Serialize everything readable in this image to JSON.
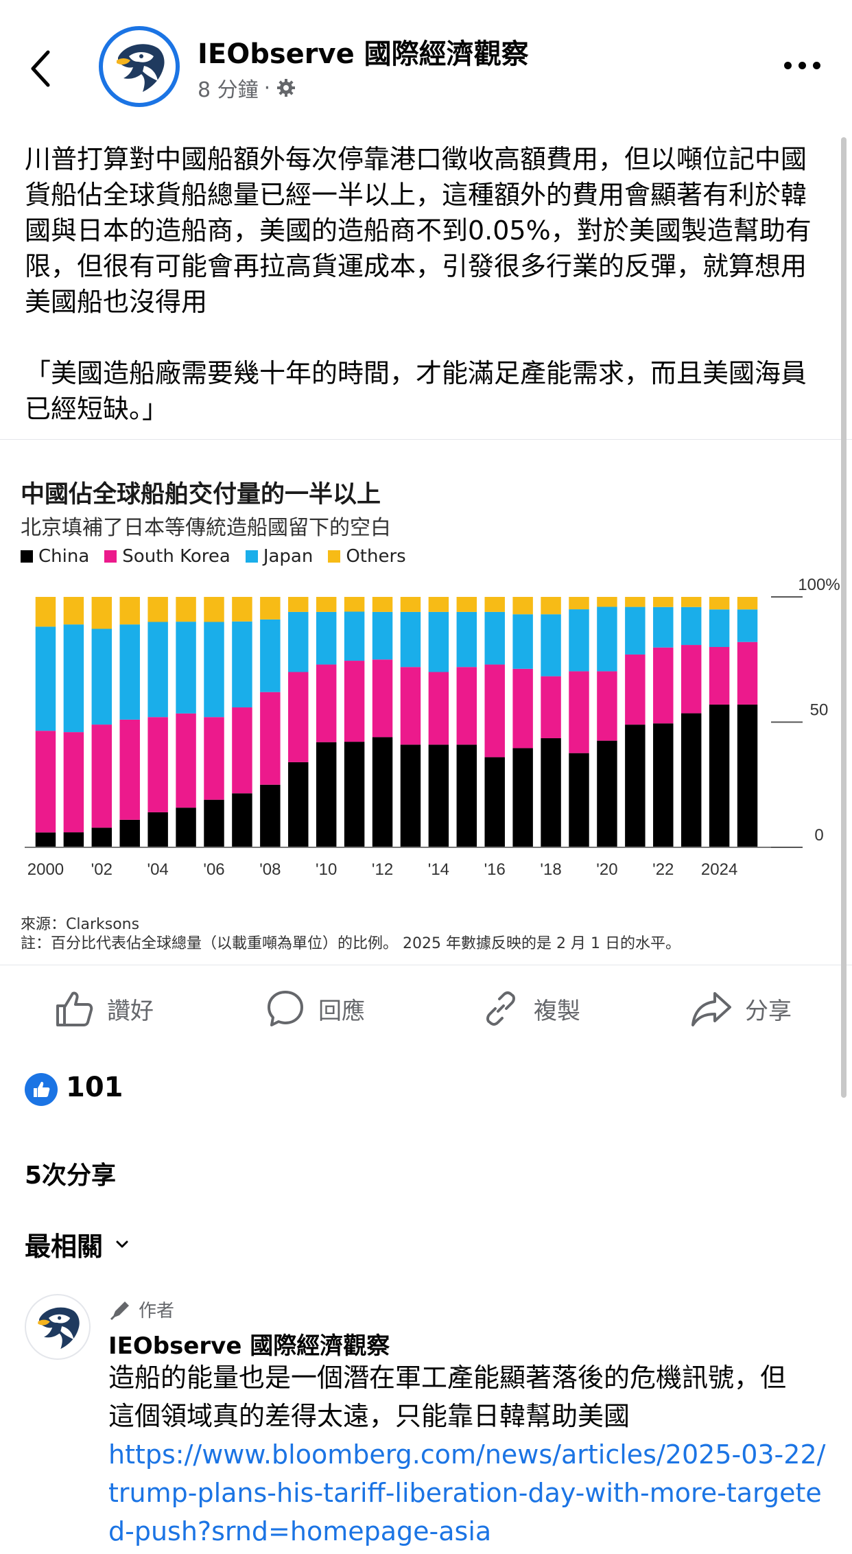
{
  "header": {
    "page_name": "IEObserve 國際經濟觀察",
    "time": "8 分鐘",
    "separator": "·"
  },
  "post": {
    "paragraphs": [
      "川普打算對中國船額外每次停靠港口徵收高額費用，但以噸位記中國貨船佔全球貨船總量已經一半以上，這種額外的費用會顯著有利於韓國與日本的造船商，美國的造船商不到0.05%，對於美國製造幫助有限，但很有可能會再拉高貨運成本，引發很多行業的反彈，就算想用美國船也沒得用",
      "「美國造船廠需要幾十年的時間，才能滿足產能需求，而且美國海員已經短缺。」"
    ]
  },
  "chart_data": {
    "type": "bar",
    "stacked": true,
    "title": "中國佔全球船舶交付量的一半以上",
    "subtitle": "北京填補了日本等傳統造船國留下的空白",
    "x": [
      2000,
      2001,
      2002,
      2003,
      2004,
      2005,
      2006,
      2007,
      2008,
      2009,
      2010,
      2011,
      2012,
      2013,
      2014,
      2015,
      2016,
      2017,
      2018,
      2019,
      2020,
      2021,
      2022,
      2023,
      2024,
      2025
    ],
    "x_tick_labels": [
      "2000",
      "'02",
      "'04",
      "'06",
      "'08",
      "'10",
      "'12",
      "'14",
      "'16",
      "'18",
      "'20",
      "'22",
      "2024"
    ],
    "y_tick_labels": [
      "100%",
      "50",
      "0"
    ],
    "ylim": [
      0,
      100
    ],
    "series": [
      {
        "name": "China",
        "color": "#000000",
        "values": [
          6,
          6,
          8,
          11,
          14,
          16,
          19,
          22,
          25,
          34,
          42,
          43,
          44,
          41,
          41,
          41,
          36,
          40,
          44,
          38,
          43,
          49,
          49,
          53,
          57,
          57
        ]
      },
      {
        "name": "South Korea",
        "color": "#ec1a8c",
        "values": [
          41,
          40,
          42,
          40,
          38,
          38,
          33,
          35,
          37,
          36,
          31,
          33,
          31,
          31,
          29,
          31,
          37,
          32,
          25,
          33,
          28,
          28,
          30,
          27,
          23,
          25
        ]
      },
      {
        "name": "Japan",
        "color": "#1aaeea",
        "values": [
          42,
          43,
          39,
          38,
          38,
          37,
          38,
          35,
          29,
          24,
          21,
          20,
          19,
          22,
          24,
          22,
          21,
          22,
          25,
          25,
          26,
          19,
          16,
          15,
          15,
          13
        ]
      },
      {
        "name": "Others",
        "color": "#f7bb16",
        "values": [
          12,
          11,
          13,
          11,
          10,
          10,
          10,
          10,
          9,
          6,
          6,
          6,
          6,
          6,
          6,
          6,
          6,
          7,
          7,
          5,
          4,
          4,
          4,
          4,
          5,
          5
        ]
      }
    ],
    "source": "來源：Clarksons",
    "note": "註：百分比代表佔全球總量（以載重噸為單位）的比例。 2025 年數據反映的是 2 月 1 日的水平。"
  },
  "actions": {
    "like": "讚好",
    "comment": "回應",
    "copy": "複製",
    "share": "分享"
  },
  "stats": {
    "like_count": "101",
    "shares": "5次分享"
  },
  "comments": {
    "sort_label": "最相關",
    "items": [
      {
        "badge": "作者",
        "name": "IEObserve 國際經濟觀察",
        "text": "造船的能量也是一個潛在軍工產能顯著落後的危機訊號，但這個領域真的差得太遠，只能靠日韓幫助美國",
        "link": "https://www.bloomberg.com/news/articles/2025-03-22/trump-plans-his-tariff-liberation-day-with-more-targeted-push?srnd=homepage-asia"
      }
    ]
  },
  "colors": {
    "accent": "#1b74e4",
    "secondary_text": "#65676b"
  }
}
